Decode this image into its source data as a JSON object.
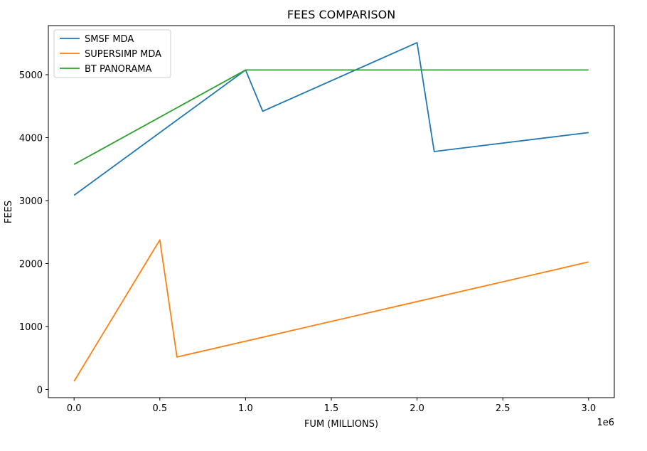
{
  "chart_data": {
    "type": "line",
    "title": "FEES COMPARISON",
    "xlabel": "FUM (MILLIONS)",
    "ylabel": "FEES",
    "x_offset_label": "1e6",
    "xlim": [
      -150000,
      3150000
    ],
    "ylim": [
      -130,
      5780
    ],
    "xticks": [
      0,
      0.5,
      1.0,
      1.5,
      2.0,
      2.5,
      3.0
    ],
    "xtick_labels": [
      "0.0",
      "0.5",
      "1.0",
      "1.5",
      "2.0",
      "2.5",
      "3.0"
    ],
    "yticks": [
      0,
      1000,
      2000,
      3000,
      4000,
      5000
    ],
    "ytick_labels": [
      "0",
      "1000",
      "2000",
      "3000",
      "4000",
      "5000"
    ],
    "grid": false,
    "legend_position": "top-left",
    "series": [
      {
        "name": "SMSF MDA",
        "color": "#1f77b4",
        "x": [
          0,
          1000000,
          1100000,
          2000000,
          2100000,
          3000000
        ],
        "y": [
          3085,
          5075,
          4420,
          5510,
          3780,
          4080
        ]
      },
      {
        "name": "SUPERSIMP MDA",
        "color": "#ff7f0e",
        "x": [
          0,
          500000,
          600000,
          3000000
        ],
        "y": [
          130,
          2375,
          515,
          2025
        ]
      },
      {
        "name": "BT PANORAMA",
        "color": "#2ca02c",
        "x": [
          0,
          1000000,
          3000000
        ],
        "y": [
          3575,
          5075,
          5075
        ]
      }
    ]
  }
}
